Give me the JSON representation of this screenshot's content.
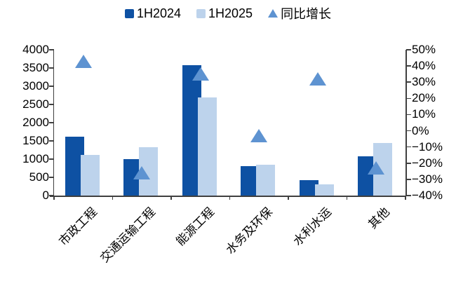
{
  "legend": {
    "items": [
      {
        "label": "1H2024",
        "marker": "square",
        "color": "#0E51A3"
      },
      {
        "label": "1H2025",
        "marker": "square",
        "color": "#BDD3EC"
      },
      {
        "label": "同比增长",
        "marker": "triangle",
        "color": "#5E93D1"
      }
    ]
  },
  "chart_data": {
    "type": "bar",
    "categories": [
      "市政工程",
      "交通运输工程",
      "能源工程",
      "水务及环保",
      "水利水运",
      "其他"
    ],
    "series": [
      {
        "name": "1H2024",
        "type": "bar",
        "axis": "left",
        "color": "#0E51A3",
        "values": [
          1610,
          1000,
          3570,
          800,
          420,
          1080
        ]
      },
      {
        "name": "1H2025",
        "type": "bar",
        "axis": "left",
        "color": "#BDD3EC",
        "values": [
          1115,
          1330,
          2700,
          845,
          300,
          1440
        ]
      },
      {
        "name": "同比增长",
        "type": "scatter",
        "marker": "triangle",
        "axis": "right",
        "color": "#5E93D1",
        "unit": "%",
        "values": [
          43,
          -26,
          35,
          -3,
          32,
          -23
        ]
      }
    ],
    "left_axis": {
      "min": 0,
      "max": 4000,
      "step": 500,
      "tick_labels": [
        "0",
        "500",
        "1000",
        "1500",
        "2000",
        "2500",
        "3000",
        "3500",
        "4000"
      ]
    },
    "right_axis": {
      "min": -40,
      "max": 50,
      "step": 10,
      "tick_labels": [
        "−40%",
        "−30%",
        "−20%",
        "−10%",
        "0%",
        "10%",
        "20%",
        "30%",
        "40%",
        "50%"
      ]
    },
    "grid": false,
    "legend_position": "top"
  },
  "colors": {
    "bar_1h2024": "#0E51A3",
    "bar_1h2025": "#BDD3EC",
    "yoy_marker": "#5E93D1",
    "axis_line": "#3F3F3F",
    "text": "#000000",
    "background": "#FFFFFF"
  }
}
